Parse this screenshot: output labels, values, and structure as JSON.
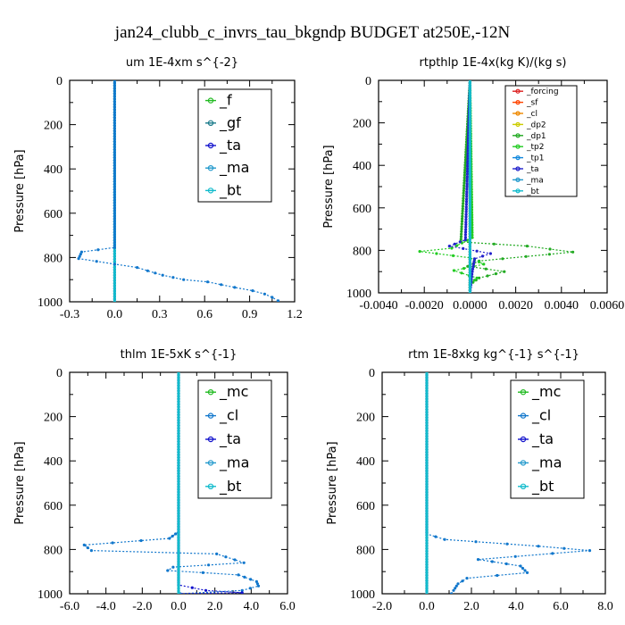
{
  "figure_title": "jan24_clubb_c_invrs_tau_bkgndp  BUDGET at250E,-12N",
  "chart_data": [
    {
      "type": "line",
      "title": "um   1E-4xm s^{-2}",
      "ylabel": "Pressure [hPa]",
      "xlim": [
        -0.3,
        1.2
      ],
      "ylim": [
        1000,
        0
      ],
      "xticks": [
        "-0.3",
        "0.0",
        "0.3",
        "0.6",
        "0.9",
        "1.2"
      ],
      "yticks": [
        "0",
        "200",
        "400",
        "600",
        "800",
        "1000"
      ],
      "series": [
        {
          "name": "_f",
          "color": "#22bb22",
          "x": [
            0,
            0
          ],
          "y": [
            0,
            1000
          ]
        },
        {
          "name": "_gf",
          "color": "#1a7a8a",
          "x": [
            0,
            0
          ],
          "y": [
            0,
            1000
          ]
        },
        {
          "name": "_ta",
          "color": "#1111cc",
          "x": [
            0,
            0
          ],
          "y": [
            0,
            1000
          ]
        },
        {
          "name": "_ma",
          "color": "#2299cc",
          "x": [
            0,
            0
          ],
          "y": [
            0,
            1000
          ]
        },
        {
          "name": "_bt",
          "color": "#11bbcc",
          "x": [
            0,
            0
          ],
          "y": [
            0,
            1000
          ]
        },
        {
          "name": "",
          "color": "#1177cc",
          "x": [
            0,
            0,
            -0.22,
            -0.24,
            0.0,
            0.15,
            0.22,
            0.32,
            0.46,
            0.62,
            0.8,
            0.92,
            1.0,
            1.05,
            1.09,
            1.09
          ],
          "y": [
            0,
            755,
            775,
            805,
            830,
            845,
            860,
            880,
            900,
            910,
            935,
            950,
            965,
            980,
            995,
            1000
          ]
        }
      ]
    },
    {
      "type": "line",
      "title": "rtpthlp   1E-4x(kg K)/(kg s)",
      "ylabel": "Pressure [hPa]",
      "xlim": [
        -0.004,
        0.006
      ],
      "ylim": [
        1000,
        0
      ],
      "xticks": [
        "-0.0040",
        "-0.0020",
        "0.0000",
        "0.0020",
        "0.0040",
        "0.0060"
      ],
      "yticks": [
        "0",
        "200",
        "400",
        "600",
        "800",
        "1000"
      ],
      "series": [
        {
          "name": "_forcing",
          "color": "#dd2222",
          "x": [
            0,
            0
          ],
          "y": [
            0,
            1000
          ]
        },
        {
          "name": "_sf",
          "color": "#ff4400",
          "x": [
            0,
            0
          ],
          "y": [
            0,
            1000
          ]
        },
        {
          "name": "_cl",
          "color": "#ee8800",
          "x": [
            0,
            0
          ],
          "y": [
            0,
            1000
          ]
        },
        {
          "name": "_dp2",
          "color": "#cccc00",
          "x": [
            0,
            0
          ],
          "y": [
            0,
            1000
          ]
        },
        {
          "name": "_dp1",
          "color": "#22aa22",
          "x": [
            0,
            -0.0004,
            0.0025,
            0.0045,
            0.0004,
            -0.0001,
            0.0015,
            0.0004,
            0.0,
            0
          ],
          "y": [
            0,
            760,
            780,
            808,
            850,
            875,
            900,
            930,
            960,
            1000
          ]
        },
        {
          "name": "_tp2",
          "color": "#22cc22",
          "x": [
            0,
            0.0001,
            -0.0008,
            -0.0022,
            0.0,
            0.0006,
            -0.0007,
            0.0003,
            0.0,
            0
          ],
          "y": [
            0,
            740,
            790,
            805,
            835,
            865,
            895,
            930,
            960,
            1000
          ]
        },
        {
          "name": "_tp1",
          "color": "#1188dd",
          "x": [
            0,
            0
          ],
          "y": [
            0,
            1000
          ]
        },
        {
          "name": "_ta",
          "color": "#2222cc",
          "x": [
            0,
            -0.0002,
            -0.0009,
            0.0009,
            0.0002,
            0.0001,
            0
          ],
          "y": [
            0,
            750,
            780,
            815,
            840,
            900,
            1000
          ]
        },
        {
          "name": "_ma",
          "color": "#2299cc",
          "x": [
            0,
            0
          ],
          "y": [
            0,
            1000
          ]
        },
        {
          "name": "_bt",
          "color": "#11bbcc",
          "x": [
            0,
            0
          ],
          "y": [
            0,
            1000
          ]
        }
      ]
    },
    {
      "type": "line",
      "title": "thlm   1E-5xK s^{-1}",
      "ylabel": "Pressure [hPa]",
      "xlim": [
        -6.0,
        6.0
      ],
      "ylim": [
        1000,
        0
      ],
      "xticks": [
        "-6.0",
        "-4.0",
        "-2.0",
        "0.0",
        "2.0",
        "4.0",
        "6.0"
      ],
      "yticks": [
        "0",
        "200",
        "400",
        "600",
        "800",
        "1000"
      ],
      "series": [
        {
          "name": "_mc",
          "color": "#22bb22",
          "x": [
            0,
            0
          ],
          "y": [
            0,
            1000
          ]
        },
        {
          "name": "_cl",
          "color": "#1177cc",
          "x": [
            0,
            0,
            -0.5,
            -5.2,
            -4.8,
            2.1,
            3.6,
            -0.3,
            -0.6,
            3.3,
            4.3,
            4.4,
            3.5,
            0.1
          ],
          "y": [
            0,
            720,
            750,
            780,
            805,
            820,
            860,
            880,
            895,
            915,
            945,
            965,
            985,
            1000
          ]
        },
        {
          "name": "_ta",
          "color": "#1111cc",
          "x": [
            0,
            0.0,
            1.5,
            3.5,
            0.0
          ],
          "y": [
            0,
            960,
            985,
            995,
            1000
          ]
        },
        {
          "name": "_ma",
          "color": "#2299cc",
          "x": [
            0,
            0
          ],
          "y": [
            0,
            1000
          ]
        },
        {
          "name": "_bt",
          "color": "#11bbcc",
          "x": [
            0,
            0
          ],
          "y": [
            0,
            1000
          ]
        }
      ]
    },
    {
      "type": "line",
      "title": "rtm   1E-8xkg kg^{-1} s^{-1}",
      "ylabel": "Pressure [hPa]",
      "xlim": [
        -2.0,
        8.0
      ],
      "ylim": [
        1000,
        0
      ],
      "xticks": [
        "-2.0",
        "0.0",
        "2.0",
        "4.0",
        "6.0",
        "8.0"
      ],
      "yticks": [
        "0",
        "200",
        "400",
        "600",
        "800",
        "1000"
      ],
      "series": [
        {
          "name": "_mc",
          "color": "#22bb22",
          "x": [
            0,
            0
          ],
          "y": [
            0,
            1000
          ]
        },
        {
          "name": "_cl",
          "color": "#1177cc",
          "x": [
            0,
            0,
            0.8,
            5.0,
            7.3,
            2.3,
            4.2,
            4.5,
            1.8,
            1.4,
            1.2,
            1.1
          ],
          "y": [
            0,
            730,
            755,
            785,
            805,
            845,
            875,
            905,
            930,
            955,
            985,
            1000
          ]
        },
        {
          "name": "_ta",
          "color": "#1111cc",
          "x": [
            0,
            0
          ],
          "y": [
            0,
            1000
          ]
        },
        {
          "name": "_ma",
          "color": "#2299cc",
          "x": [
            0,
            0
          ],
          "y": [
            0,
            1000
          ]
        },
        {
          "name": "_bt",
          "color": "#11bbcc",
          "x": [
            0,
            0
          ],
          "y": [
            0,
            1000
          ]
        }
      ]
    }
  ]
}
